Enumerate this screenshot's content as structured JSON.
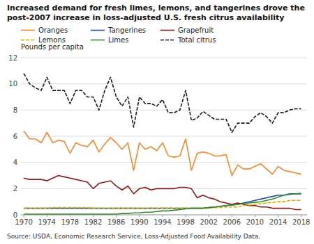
{
  "chart_data": {
    "type": "line",
    "title": "Increased demand for fresh limes, lemons, and tangerines drove the post-2007 increase in loss-adjusted U.S. fresh citrus availability",
    "y_label": "Pounds per capita",
    "annotations": [
      "Source: USDA, Economic Research Service, Loss-Adjusted Food Availability Data."
    ],
    "x": [
      1970,
      1971,
      1972,
      1973,
      1974,
      1975,
      1976,
      1977,
      1978,
      1979,
      1980,
      1981,
      1982,
      1983,
      1984,
      1985,
      1986,
      1987,
      1988,
      1989,
      1990,
      1991,
      1992,
      1993,
      1994,
      1995,
      1996,
      1997,
      1998,
      1999,
      2000,
      2001,
      2002,
      2003,
      2004,
      2005,
      2006,
      2007,
      2008,
      2009,
      2010,
      2011,
      2012,
      2013,
      2014,
      2015,
      2016,
      2017,
      2018
    ],
    "series": [
      {
        "name": "Oranges",
        "color": "#F4892D",
        "line_style": "solid",
        "values": [
          6.4,
          5.8,
          5.8,
          5.5,
          6.3,
          5.5,
          5.7,
          5.6,
          4.7,
          5.5,
          5.3,
          5.2,
          5.7,
          4.8,
          5.4,
          5.9,
          5.5,
          5.0,
          5.5,
          3.4,
          5.5,
          5.0,
          5.2,
          4.9,
          5.5,
          4.5,
          4.4,
          4.5,
          5.8,
          3.4,
          4.7,
          4.8,
          4.7,
          4.5,
          4.5,
          4.6,
          3.0,
          3.8,
          3.5,
          3.5,
          3.7,
          3.9,
          3.5,
          3.1,
          3.7,
          3.4,
          3.3,
          3.2,
          3.1
        ]
      },
      {
        "name": "Tangerines",
        "color": "#1F4E9F",
        "line_style": "solid",
        "values": [
          0.5,
          0.5,
          0.5,
          0.5,
          0.5,
          0.5,
          0.5,
          0.5,
          0.5,
          0.5,
          0.5,
          0.5,
          0.5,
          0.5,
          0.5,
          0.5,
          0.5,
          0.5,
          0.5,
          0.5,
          0.5,
          0.5,
          0.5,
          0.5,
          0.5,
          0.5,
          0.5,
          0.5,
          0.5,
          0.5,
          0.5,
          0.5,
          0.55,
          0.6,
          0.65,
          0.7,
          0.75,
          0.8,
          0.9,
          1.0,
          1.1,
          1.2,
          1.3,
          1.4,
          1.5,
          1.5,
          1.6,
          1.6,
          1.6
        ]
      },
      {
        "name": "Grapefruit",
        "color": "#8B1A1A",
        "line_style": "solid",
        "values": [
          2.8,
          2.7,
          2.7,
          2.7,
          2.6,
          2.8,
          3.0,
          2.9,
          2.8,
          2.7,
          2.6,
          2.5,
          2.0,
          2.4,
          2.5,
          2.6,
          2.2,
          1.9,
          2.2,
          1.6,
          2.0,
          2.1,
          1.9,
          2.0,
          2.0,
          2.0,
          2.0,
          2.1,
          2.1,
          2.0,
          1.3,
          1.5,
          1.3,
          1.2,
          1.0,
          0.9,
          0.8,
          0.9,
          0.8,
          0.7,
          0.7,
          0.6,
          0.6,
          0.5,
          0.5,
          0.5,
          0.5,
          0.4,
          0.4
        ]
      },
      {
        "name": "Lemons",
        "color": "#D4AF00",
        "line_style": "dashed",
        "values": [
          0.5,
          0.5,
          0.5,
          0.5,
          0.5,
          0.55,
          0.55,
          0.55,
          0.55,
          0.55,
          0.55,
          0.55,
          0.5,
          0.5,
          0.5,
          0.5,
          0.5,
          0.5,
          0.5,
          0.5,
          0.5,
          0.5,
          0.5,
          0.5,
          0.5,
          0.5,
          0.5,
          0.5,
          0.5,
          0.5,
          0.5,
          0.5,
          0.5,
          0.55,
          0.55,
          0.6,
          0.6,
          0.6,
          0.7,
          0.75,
          0.8,
          0.85,
          0.9,
          0.95,
          1.0,
          1.0,
          1.1,
          1.1,
          1.1
        ]
      },
      {
        "name": "Limes",
        "color": "#3A8B2F",
        "line_style": "solid",
        "values": [
          0.05,
          0.05,
          0.05,
          0.05,
          0.05,
          0.05,
          0.05,
          0.05,
          0.05,
          0.05,
          0.05,
          0.05,
          0.05,
          0.05,
          0.05,
          0.05,
          0.05,
          0.1,
          0.1,
          0.15,
          0.15,
          0.2,
          0.2,
          0.25,
          0.3,
          0.3,
          0.35,
          0.4,
          0.45,
          0.5,
          0.5,
          0.5,
          0.55,
          0.6,
          0.65,
          0.7,
          0.75,
          0.8,
          0.85,
          0.9,
          0.95,
          1.0,
          1.1,
          1.2,
          1.35,
          1.5,
          1.55,
          1.6,
          1.65
        ]
      },
      {
        "name": "Total citrus",
        "color": "#1a1a1a",
        "line_style": "dashed",
        "values": [
          10.8,
          10.0,
          9.7,
          9.5,
          10.5,
          9.5,
          9.5,
          9.5,
          8.5,
          9.5,
          9.5,
          9.0,
          9.0,
          8.0,
          9.5,
          10.5,
          9.0,
          8.3,
          9.0,
          6.7,
          9.0,
          8.5,
          8.5,
          8.3,
          8.8,
          7.8,
          7.8,
          8.0,
          9.5,
          7.2,
          7.4,
          7.9,
          7.6,
          7.3,
          7.3,
          7.3,
          6.3,
          7.0,
          7.0,
          7.0,
          7.5,
          7.8,
          7.5,
          7.0,
          7.8,
          7.8,
          8.0,
          8.1,
          8.1
        ]
      }
    ],
    "xlim": [
      1969.5,
      2019.0
    ],
    "xticks": [
      1970,
      1974,
      1978,
      1982,
      1986,
      1990,
      1994,
      1998,
      2002,
      2006,
      2010,
      2014,
      2018
    ],
    "ylim": [
      0,
      12
    ],
    "yticks": [
      0,
      2,
      4,
      6,
      8,
      10,
      12
    ],
    "grid": true,
    "legend": "top"
  }
}
